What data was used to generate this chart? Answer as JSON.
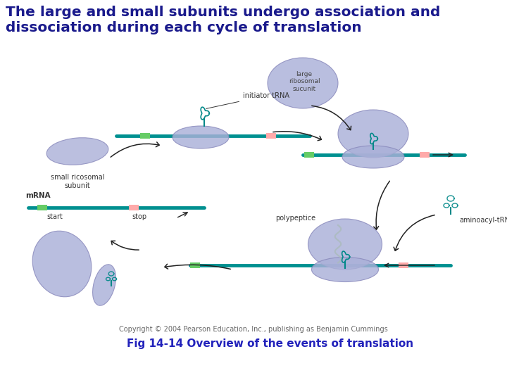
{
  "title_line1": "The large and small subunits undergo association and",
  "title_line2": "dissociation during each cycle of translation",
  "title_color": "#1a1a8c",
  "title_fontsize": 14.5,
  "caption": "Fig 14-14 Overview of the events of translation",
  "caption_color": "#2222bb",
  "caption_fontsize": 11,
  "copyright": "Copyright © 2004 Pearson Education, Inc., publishing as Benjamin Cummings",
  "copyright_fontsize": 7,
  "bg_color": "#ffffff",
  "mrna_color": "#009090",
  "ribosome_small_color": "#aab0d8",
  "ribosome_large_color": "#aab0d8",
  "start_color": "#66cc66",
  "stop_color": "#ffaaaa",
  "trna_color": "#008888",
  "arrow_color": "#222222",
  "label_fontsize": 7,
  "label_color": "#333333"
}
